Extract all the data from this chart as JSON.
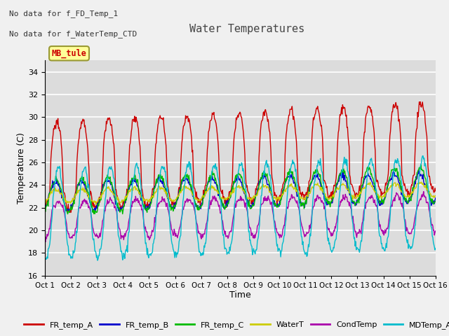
{
  "title": "Water Temperatures",
  "xlabel": "Time",
  "ylabel": "Temperature (C)",
  "ylim": [
    16,
    35
  ],
  "yticks": [
    16,
    18,
    20,
    22,
    24,
    26,
    28,
    30,
    32,
    34
  ],
  "xlim": [
    0,
    15
  ],
  "xtick_labels": [
    "Oct 1",
    "Oct 2",
    "Oct 3",
    "Oct 4",
    "Oct 5",
    "Oct 6",
    "Oct 7",
    "Oct 8",
    "Oct 9",
    "Oct 10",
    "Oct 11",
    "Oct 12",
    "Oct 13",
    "Oct 14",
    "Oct 15",
    "Oct 16"
  ],
  "annotation_texts": [
    "No data for f_FD_Temp_1",
    "No data for f_WaterTemp_CTD"
  ],
  "mb_tule_label": "MB_tule",
  "legend_entries": [
    {
      "label": "FR_temp_A",
      "color": "#cc0000"
    },
    {
      "label": "FR_temp_B",
      "color": "#0000cc"
    },
    {
      "label": "FR_temp_C",
      "color": "#00bb00"
    },
    {
      "label": "WaterT",
      "color": "#cccc00"
    },
    {
      "label": "CondTemp",
      "color": "#aa00aa"
    },
    {
      "label": "MDTemp_A",
      "color": "#00bbcc"
    }
  ],
  "fig_bg_color": "#f0f0f0",
  "plot_bg_color": "#dcdcdc",
  "grid_color": "#ffffff"
}
